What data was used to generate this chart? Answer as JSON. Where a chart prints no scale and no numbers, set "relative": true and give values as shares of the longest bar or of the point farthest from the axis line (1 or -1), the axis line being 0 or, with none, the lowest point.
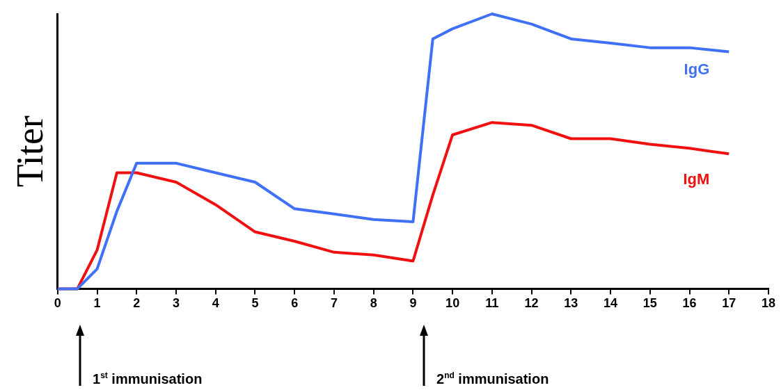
{
  "chart_data": {
    "type": "line",
    "ylabel": "Titer",
    "relative": true,
    "marker": "none",
    "xlim": [
      0,
      18
    ],
    "xticks": [
      0,
      1,
      2,
      3,
      4,
      5,
      6,
      7,
      8,
      9,
      10,
      11,
      12,
      13,
      14,
      15,
      16,
      17,
      18
    ],
    "x": [
      0,
      0.5,
      1,
      1.5,
      2,
      3,
      4,
      5,
      6,
      7,
      8,
      9,
      9.5,
      10,
      11,
      12,
      13,
      14,
      15,
      16,
      17
    ],
    "series": [
      {
        "name": "IgG",
        "color": "#3f70f5",
        "values": [
          0,
          0,
          0.072,
          0.282,
          0.457,
          0.457,
          0.422,
          0.388,
          0.291,
          0.272,
          0.252,
          0.244,
          0.909,
          0.946,
          1,
          0.963,
          0.909,
          0.894,
          0.877,
          0.877,
          0.862
        ]
      },
      {
        "name": "IgM",
        "color": "#f01010",
        "values": [
          0,
          0,
          0.141,
          0.422,
          0.422,
          0.388,
          0.306,
          0.207,
          0.173,
          0.133,
          0.123,
          0.101,
          0.341,
          0.56,
          0.605,
          0.595,
          0.546,
          0.546,
          0.526,
          0.511,
          0.491
        ]
      }
    ],
    "annotations": [
      "1$^{st}$ immunisation",
      "2$^{nd}$ immunisation"
    ]
  }
}
